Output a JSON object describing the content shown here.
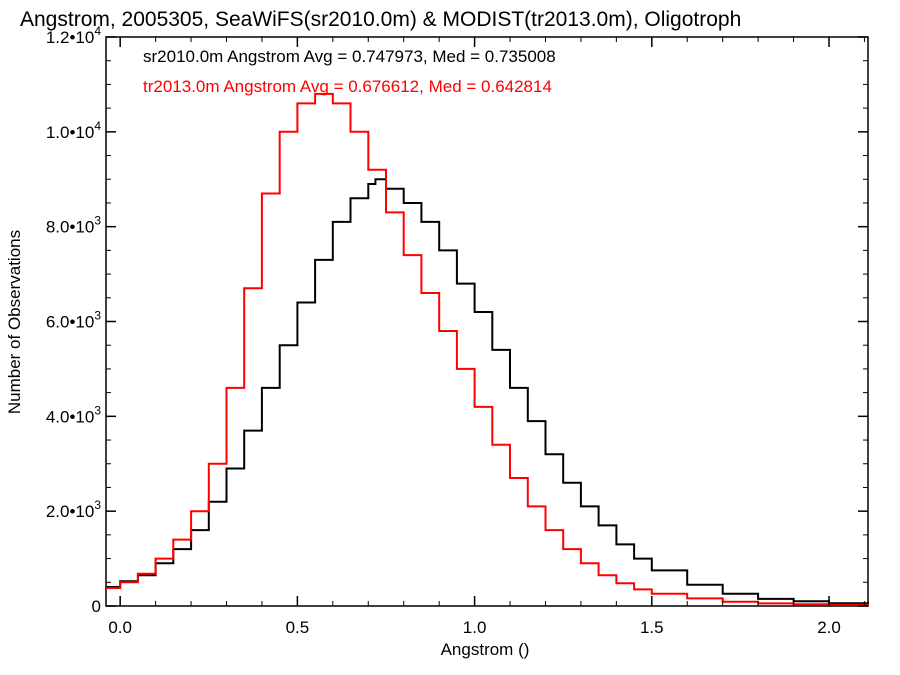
{
  "chart_data": {
    "type": "line",
    "title": "Angstrom, 2005305, SeaWiFS(sr2010.0m) & MODIST(tr2013.0m), Oligotroph",
    "xlabel": "Angstrom ()",
    "ylabel": "Number of Observations",
    "xlim": [
      -0.04,
      2.11
    ],
    "ylim": [
      0,
      12000
    ],
    "x_ticks": [
      0.0,
      0.5,
      1.0,
      1.5,
      2.0
    ],
    "x_tick_labels": [
      "0.0",
      "0.5",
      "1.0",
      "1.5",
      "2.0"
    ],
    "y_ticks": [
      0,
      2000,
      4000,
      6000,
      8000,
      10000,
      12000
    ],
    "y_tick_labels": [
      {
        "mantissa": "0",
        "exp": ""
      },
      {
        "mantissa": "2.0•10",
        "exp": "3"
      },
      {
        "mantissa": "4.0•10",
        "exp": "3"
      },
      {
        "mantissa": "6.0•10",
        "exp": "3"
      },
      {
        "mantissa": "8.0•10",
        "exp": "3"
      },
      {
        "mantissa": "1.0•10",
        "exp": "4"
      },
      {
        "mantissa": "1.2•10",
        "exp": "4"
      }
    ],
    "grid": false,
    "legend_position": "top-left",
    "series": [
      {
        "name": "sr2010.0m",
        "label": "sr2010.0m Angstrom Avg = 0.747973, Med = 0.735008",
        "color": "#000000",
        "step": "histogram",
        "x": [
          -0.04,
          0.0,
          0.05,
          0.1,
          0.15,
          0.2,
          0.25,
          0.3,
          0.35,
          0.4,
          0.45,
          0.5,
          0.55,
          0.6,
          0.65,
          0.7,
          0.72,
          0.75,
          0.8,
          0.85,
          0.9,
          0.95,
          1.0,
          1.05,
          1.1,
          1.15,
          1.2,
          1.25,
          1.3,
          1.35,
          1.4,
          1.45,
          1.5,
          1.6,
          1.7,
          1.8,
          1.9,
          2.0,
          2.11
        ],
        "y": [
          400,
          520,
          650,
          900,
          1200,
          1600,
          2200,
          2900,
          3700,
          4600,
          5500,
          6400,
          7300,
          8100,
          8600,
          8900,
          9000,
          8800,
          8500,
          8100,
          7500,
          6800,
          6200,
          5400,
          4600,
          3900,
          3200,
          2600,
          2100,
          1700,
          1300,
          1000,
          750,
          450,
          260,
          150,
          100,
          60,
          40
        ]
      },
      {
        "name": "tr2013.0m",
        "label": "tr2013.0m Angstrom Avg = 0.676612, Med = 0.642814",
        "color": "#ff0000",
        "step": "histogram",
        "x": [
          -0.04,
          0.0,
          0.05,
          0.1,
          0.15,
          0.2,
          0.25,
          0.3,
          0.35,
          0.4,
          0.45,
          0.5,
          0.55,
          0.58,
          0.6,
          0.65,
          0.7,
          0.75,
          0.8,
          0.85,
          0.9,
          0.95,
          1.0,
          1.05,
          1.1,
          1.15,
          1.2,
          1.25,
          1.3,
          1.35,
          1.4,
          1.45,
          1.5,
          1.6,
          1.7,
          1.8,
          1.9,
          2.0,
          2.11
        ],
        "y": [
          380,
          500,
          680,
          1000,
          1400,
          2000,
          3000,
          4600,
          6700,
          8700,
          10000,
          10600,
          10800,
          10800,
          10600,
          10000,
          9200,
          8300,
          7400,
          6600,
          5800,
          5000,
          4200,
          3400,
          2700,
          2100,
          1600,
          1200,
          900,
          650,
          480,
          350,
          260,
          160,
          90,
          55,
          35,
          25,
          15
        ]
      }
    ]
  }
}
